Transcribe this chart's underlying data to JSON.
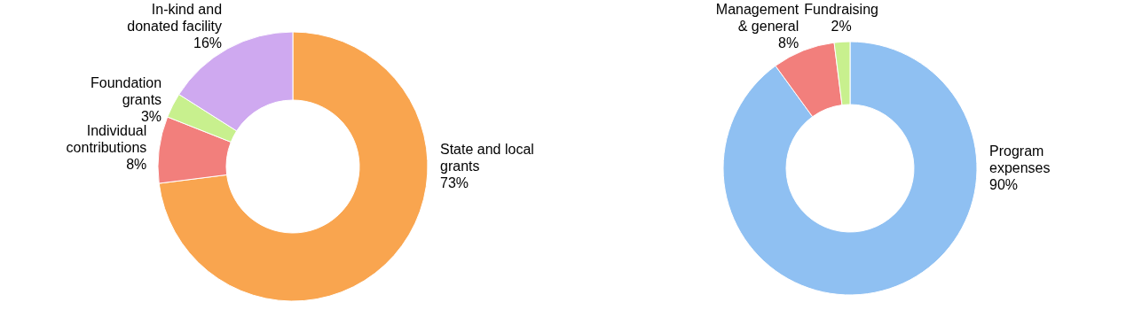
{
  "chart_data": [
    {
      "type": "donut",
      "categories": [
        "State and local\ngrants",
        "Individual\ncontributions",
        "Foundation\ngrants",
        "In-kind and\ndonated facility"
      ],
      "values": [
        73,
        8,
        3,
        16
      ],
      "value_labels": [
        "73%",
        "8%",
        "3%",
        "16%"
      ],
      "colors": [
        "#f9a54f",
        "#f27f7c",
        "#c8f08e",
        "#cfa9f0"
      ],
      "legend": false
    },
    {
      "type": "donut",
      "categories": [
        "Program\nexpenses",
        "Management\n& general",
        "Fundraising"
      ],
      "values": [
        90,
        8,
        2
      ],
      "value_labels": [
        "90%",
        "8%",
        "2%"
      ],
      "colors": [
        "#8fc0f2",
        "#f27f7c",
        "#c8f08e"
      ],
      "legend": false
    }
  ]
}
